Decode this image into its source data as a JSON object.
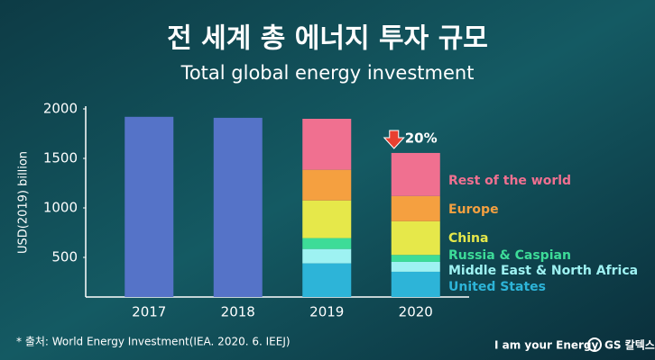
{
  "chart_data": {
    "type": "stacked_bar",
    "title": "전 세계 총 에너지 투자 규모",
    "subtitle": "Total global energy investment",
    "y_label": "USD(2019) billion",
    "categories": [
      "2017",
      "2018",
      "2019",
      "2020"
    ],
    "series": [
      {
        "color": "#5573c8",
        "values": [
          1920,
          1910,
          null,
          null
        ]
      },
      {
        "name": "United States",
        "color": "#2db4d8",
        "values": [
          null,
          null,
          440,
          355
        ]
      },
      {
        "name": "Middle East & North Africa",
        "color": "#9ef2f2",
        "values": [
          null,
          null,
          145,
          100
        ]
      },
      {
        "name": "Russia & Caspian",
        "color": "#3ddc98",
        "values": [
          null,
          null,
          110,
          70
        ]
      },
      {
        "name": "China",
        "color": "#e6e84a",
        "values": [
          null,
          null,
          380,
          340
        ]
      },
      {
        "name": "Europe",
        "color": "#f5a040",
        "values": [
          null,
          null,
          310,
          255
        ]
      },
      {
        "name": "Rest of the world",
        "color": "#f07090",
        "values": [
          null,
          null,
          515,
          435
        ]
      }
    ],
    "ylim": [
      100,
      2000
    ],
    "yticks": [
      500,
      1000,
      1500,
      2000
    ],
    "annotation": "20%",
    "source": "* 출처: World Energy Investment(IEA. 2020. 6. IEEJ)",
    "brand": "I am your Energy",
    "logo": "GS 칼텍스"
  }
}
